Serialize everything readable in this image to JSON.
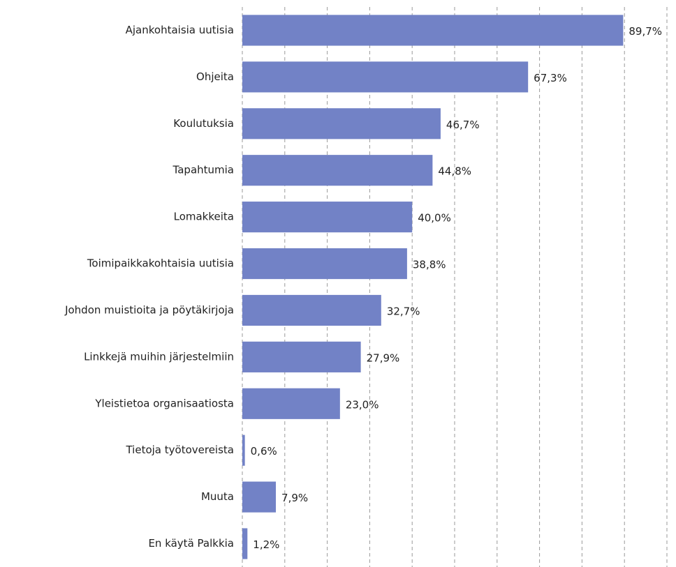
{
  "chart_data": {
    "type": "hbar",
    "categories": [
      "Ajankohtaisia uutisia",
      "Ohjeita",
      "Koulutuksia",
      "Tapahtumia",
      "Lomakkeita",
      "Toimipaikkakohtaisia uutisia",
      "Johdon muistioita ja pöytäkirjoja",
      "Linkkejä muihin järjestelmiin",
      "Yleistietoa organisaatiosta",
      "Tietoja työtovereista",
      "Muuta",
      "En käytä Palkkia"
    ],
    "values": [
      89.7,
      67.3,
      46.7,
      44.8,
      40.0,
      38.8,
      32.7,
      27.9,
      23.0,
      0.6,
      7.9,
      1.2
    ],
    "value_labels": [
      "89,7%",
      "67,3%",
      "46,7%",
      "44,8%",
      "40,0%",
      "38,8%",
      "32,7%",
      "27,9%",
      "23,0%",
      "0,6%",
      "7,9%",
      "1,2%"
    ],
    "color": "#7282c6",
    "xlim": [
      0,
      100
    ],
    "xticks": [
      0,
      10,
      20,
      30,
      40,
      50,
      60,
      70,
      80,
      90,
      100
    ],
    "grid": true
  }
}
